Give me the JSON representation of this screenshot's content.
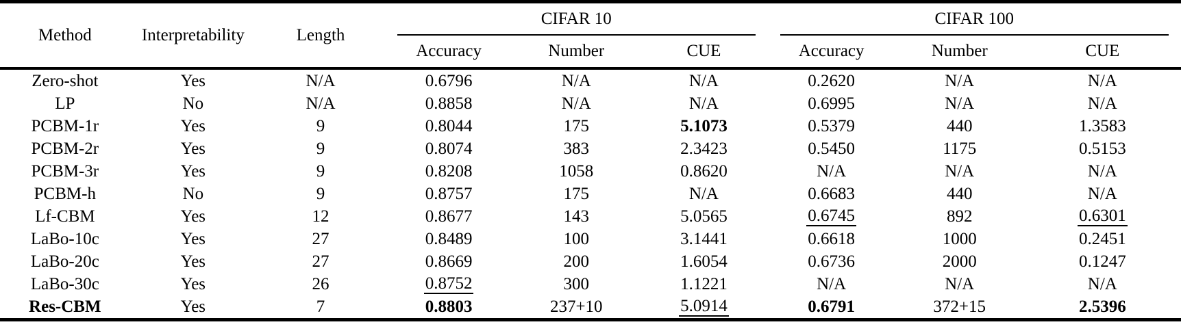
{
  "table": {
    "columns": {
      "method": "Method",
      "interpretability": "Interpretability",
      "length": "Length",
      "groups": [
        {
          "label": "CIFAR 10",
          "sub": [
            "Accuracy",
            "Number",
            "CUE"
          ]
        },
        {
          "label": "CIFAR 100",
          "sub": [
            "Accuracy",
            "Number",
            "CUE"
          ]
        }
      ]
    },
    "rows": [
      {
        "cells": [
          {
            "t": "Zero-shot"
          },
          {
            "t": "Yes"
          },
          {
            "t": "N/A"
          },
          {
            "t": "0.6796"
          },
          {
            "t": "N/A"
          },
          {
            "t": "N/A"
          },
          {
            "t": "0.2620"
          },
          {
            "t": "N/A"
          },
          {
            "t": "N/A"
          }
        ]
      },
      {
        "cells": [
          {
            "t": "LP"
          },
          {
            "t": "No"
          },
          {
            "t": "N/A"
          },
          {
            "t": "0.8858"
          },
          {
            "t": "N/A"
          },
          {
            "t": "N/A"
          },
          {
            "t": "0.6995"
          },
          {
            "t": "N/A"
          },
          {
            "t": "N/A"
          }
        ]
      },
      {
        "cells": [
          {
            "t": "PCBM-1r"
          },
          {
            "t": "Yes"
          },
          {
            "t": "9"
          },
          {
            "t": "0.8044"
          },
          {
            "t": "175"
          },
          {
            "t": "5.1073",
            "b": 1
          },
          {
            "t": "0.5379"
          },
          {
            "t": "440"
          },
          {
            "t": "1.3583"
          }
        ]
      },
      {
        "cells": [
          {
            "t": "PCBM-2r"
          },
          {
            "t": "Yes"
          },
          {
            "t": "9"
          },
          {
            "t": "0.8074"
          },
          {
            "t": "383"
          },
          {
            "t": "2.3423"
          },
          {
            "t": "0.5450"
          },
          {
            "t": "1175"
          },
          {
            "t": "0.5153"
          }
        ]
      },
      {
        "cells": [
          {
            "t": "PCBM-3r"
          },
          {
            "t": "Yes"
          },
          {
            "t": "9"
          },
          {
            "t": "0.8208"
          },
          {
            "t": "1058"
          },
          {
            "t": "0.8620"
          },
          {
            "t": "N/A"
          },
          {
            "t": "N/A"
          },
          {
            "t": "N/A"
          }
        ]
      },
      {
        "cells": [
          {
            "t": "PCBM-h"
          },
          {
            "t": "No"
          },
          {
            "t": "9"
          },
          {
            "t": "0.8757"
          },
          {
            "t": "175"
          },
          {
            "t": "N/A"
          },
          {
            "t": "0.6683"
          },
          {
            "t": "440"
          },
          {
            "t": "N/A"
          }
        ]
      },
      {
        "cells": [
          {
            "t": "Lf-CBM"
          },
          {
            "t": "Yes"
          },
          {
            "t": "12"
          },
          {
            "t": "0.8677"
          },
          {
            "t": "143"
          },
          {
            "t": "5.0565"
          },
          {
            "t": "0.6745",
            "u": 1
          },
          {
            "t": "892"
          },
          {
            "t": "0.6301",
            "u": 1
          }
        ]
      },
      {
        "cells": [
          {
            "t": "LaBo-10c"
          },
          {
            "t": "Yes"
          },
          {
            "t": "27"
          },
          {
            "t": "0.8489"
          },
          {
            "t": "100"
          },
          {
            "t": "3.1441"
          },
          {
            "t": "0.6618"
          },
          {
            "t": "1000"
          },
          {
            "t": "0.2451"
          }
        ]
      },
      {
        "cells": [
          {
            "t": "LaBo-20c"
          },
          {
            "t": "Yes"
          },
          {
            "t": "27"
          },
          {
            "t": "0.8669"
          },
          {
            "t": "200"
          },
          {
            "t": "1.6054"
          },
          {
            "t": "0.6736"
          },
          {
            "t": "2000"
          },
          {
            "t": "0.1247"
          }
        ]
      },
      {
        "cells": [
          {
            "t": "LaBo-30c"
          },
          {
            "t": "Yes"
          },
          {
            "t": "26"
          },
          {
            "t": "0.8752",
            "u": 1
          },
          {
            "t": "300"
          },
          {
            "t": "1.1221"
          },
          {
            "t": "N/A"
          },
          {
            "t": "N/A"
          },
          {
            "t": "N/A"
          }
        ]
      },
      {
        "cells": [
          {
            "t": "Res-CBM",
            "b": 1
          },
          {
            "t": "Yes"
          },
          {
            "t": "7"
          },
          {
            "t": "0.8803",
            "b": 1
          },
          {
            "t": "237+10"
          },
          {
            "t": "5.0914",
            "u": 1
          },
          {
            "t": "0.6791",
            "b": 1
          },
          {
            "t": "372+15"
          },
          {
            "t": "2.5396",
            "b": 1
          }
        ]
      }
    ]
  },
  "styles": {
    "rule_color": "#000000",
    "background": "#ffffff",
    "text_color": "#000000"
  }
}
